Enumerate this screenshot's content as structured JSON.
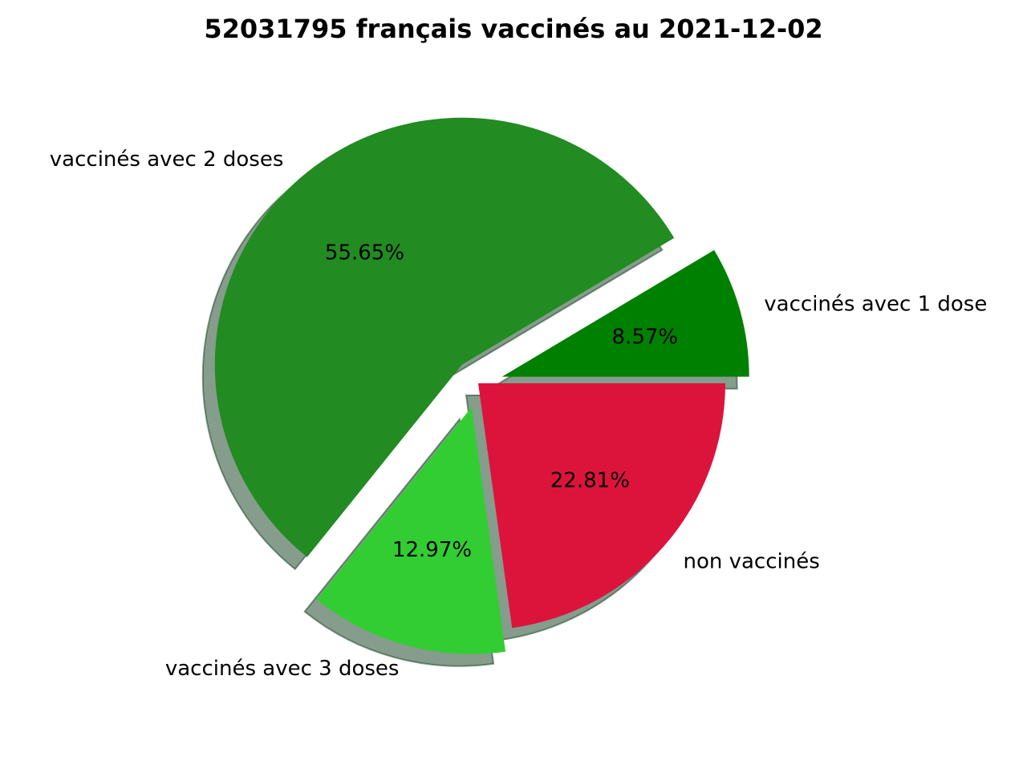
{
  "chart_data": {
    "type": "pie",
    "title": "52031795 français vaccinés au 2021-12-02",
    "start_angle_deg": 0,
    "direction": "counterclockwise",
    "shadow": true,
    "slices": [
      {
        "label": "vaccinés avec 1 dose",
        "value": 8.57,
        "pct_label": "8.57%",
        "color": "#008000",
        "exploded": true
      },
      {
        "label": "vaccinés avec 2 doses",
        "value": 55.65,
        "pct_label": "55.65%",
        "color": "#228b22",
        "exploded": true
      },
      {
        "label": "vaccinés avec 3 doses",
        "value": 12.97,
        "pct_label": "12.97%",
        "color": "#32cd32",
        "exploded": true
      },
      {
        "label": "non vaccinés",
        "value": 22.81,
        "pct_label": "22.81%",
        "color": "#dc143c",
        "exploded": false
      }
    ]
  }
}
